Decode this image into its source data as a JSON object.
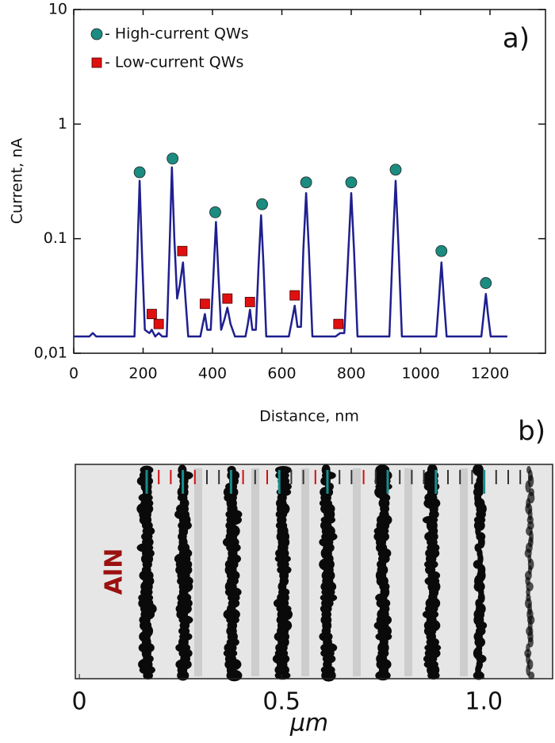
{
  "chart_data": [
    {
      "type": "line",
      "title": "a)",
      "xlabel": "Distance, nm",
      "ylabel": "Current, nA",
      "xlim": [
        0,
        1360
      ],
      "xticks": [
        0,
        200,
        400,
        600,
        800,
        1000,
        1200
      ],
      "ylim": [
        0.01,
        10
      ],
      "log_y": true,
      "yticks": [
        {
          "value": 0.01,
          "label": "0,01"
        },
        0.1,
        1,
        10
      ],
      "series": [
        {
          "type": "line",
          "color": "#1f1f8f",
          "x": [
            0,
            45,
            55,
            65,
            175,
            183,
            190,
            197,
            205,
            218,
            225,
            235,
            245,
            255,
            268,
            276,
            283,
            290,
            298,
            306,
            315,
            322,
            330,
            365,
            372,
            378,
            385,
            395,
            403,
            410,
            417,
            425,
            435,
            443,
            452,
            465,
            495,
            502,
            508,
            515,
            525,
            533,
            540,
            547,
            555,
            620,
            630,
            637,
            645,
            655,
            662,
            670,
            678,
            688,
            755,
            768,
            780,
            792,
            800,
            808,
            818,
            910,
            920,
            928,
            936,
            946,
            1045,
            1053,
            1060,
            1067,
            1075,
            1175,
            1182,
            1188,
            1194,
            1202,
            1250
          ],
          "values": [
            0.014,
            0.014,
            0.015,
            0.014,
            0.014,
            0.07,
            0.32,
            0.07,
            0.016,
            0.015,
            0.016,
            0.014,
            0.015,
            0.014,
            0.014,
            0.08,
            0.42,
            0.1,
            0.03,
            0.04,
            0.062,
            0.03,
            0.014,
            0.014,
            0.018,
            0.022,
            0.016,
            0.016,
            0.05,
            0.14,
            0.05,
            0.016,
            0.02,
            0.025,
            0.018,
            0.014,
            0.014,
            0.018,
            0.024,
            0.016,
            0.016,
            0.06,
            0.16,
            0.06,
            0.014,
            0.014,
            0.02,
            0.026,
            0.017,
            0.017,
            0.08,
            0.25,
            0.08,
            0.014,
            0.014,
            0.015,
            0.015,
            0.08,
            0.25,
            0.08,
            0.014,
            0.014,
            0.09,
            0.32,
            0.09,
            0.014,
            0.014,
            0.03,
            0.062,
            0.03,
            0.014,
            0.014,
            0.022,
            0.033,
            0.022,
            0.014,
            0.014
          ]
        },
        {
          "type": "scatter",
          "marker": "circle",
          "name": "- High-current QWs",
          "color": "#1a8c80",
          "x": [
            190,
            285,
            408,
            543,
            670,
            800,
            928,
            1060,
            1188
          ],
          "values": [
            0.38,
            0.5,
            0.17,
            0.2,
            0.31,
            0.31,
            0.4,
            0.078,
            0.041
          ]
        },
        {
          "type": "scatter",
          "marker": "square",
          "name": "- Low-current QWs",
          "color": "#e01010",
          "x": [
            225,
            245,
            313,
            378,
            443,
            508,
            637,
            763
          ],
          "values": [
            0.022,
            0.018,
            0.078,
            0.027,
            0.03,
            0.028,
            0.032,
            0.018
          ]
        }
      ]
    },
    {
      "type": "image",
      "title": "b)",
      "annotation": "AlN",
      "xlabel": "μm",
      "xlim": [
        -0.01,
        1.17
      ],
      "xticks": [
        0,
        0.5,
        {
          "value": 1,
          "label": "1.0"
        }
      ]
    }
  ]
}
